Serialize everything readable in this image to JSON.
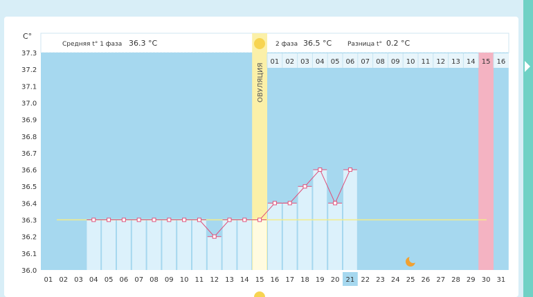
{
  "header": {
    "phase1_label": "Средняя t° 1 фаза",
    "phase1_value": "36.3 °C",
    "phase2_label": "2 фаза",
    "phase2_value": "36.5 °C",
    "diff_label": "Разница t°",
    "diff_value": "0.2 °C",
    "ovulation_label": "ОВУЛЯЦИЯ"
  },
  "chart_data": {
    "type": "line",
    "ylabel": "C°",
    "ylim": [
      36.0,
      37.3
    ],
    "y_ticks": [
      "36.0",
      "36.1",
      "36.2",
      "36.3",
      "36.4",
      "36.5",
      "36.6",
      "36.7",
      "36.8",
      "36.9",
      "37.0",
      "37.1",
      "37.2",
      "37.3"
    ],
    "x_labels": [
      "01",
      "02",
      "03",
      "04",
      "05",
      "06",
      "07",
      "08",
      "09",
      "10",
      "11",
      "12",
      "13",
      "14",
      "15",
      "16",
      "17",
      "18",
      "19",
      "20",
      "21",
      "22",
      "23",
      "24",
      "25",
      "26",
      "27",
      "28",
      "29",
      "30",
      "31"
    ],
    "phase2_day_labels": [
      "01",
      "02",
      "03",
      "04",
      "05",
      "06",
      "07",
      "08",
      "09",
      "10",
      "11",
      "12",
      "13",
      "14",
      "15",
      "16"
    ],
    "temperatures": [
      null,
      null,
      null,
      36.3,
      36.3,
      36.3,
      36.3,
      36.3,
      36.3,
      36.3,
      36.3,
      36.2,
      36.3,
      36.3,
      36.3,
      36.4,
      36.4,
      36.5,
      36.6,
      36.4,
      36.6,
      null,
      null,
      null,
      null,
      null,
      null,
      null,
      null,
      null,
      null
    ],
    "coverline": 36.3,
    "ovulation_day": "15",
    "highlighted_day": "21",
    "period_day": "30",
    "colors": {
      "background": "#a6d8ef",
      "bars": "#dcf1fb",
      "line": "#e0507a",
      "coverline": "#f3ec88",
      "ovulation": "#fbf0a8",
      "period": "#f4b3c2",
      "moon": "#f0a132",
      "sun": "#f7d451"
    }
  }
}
